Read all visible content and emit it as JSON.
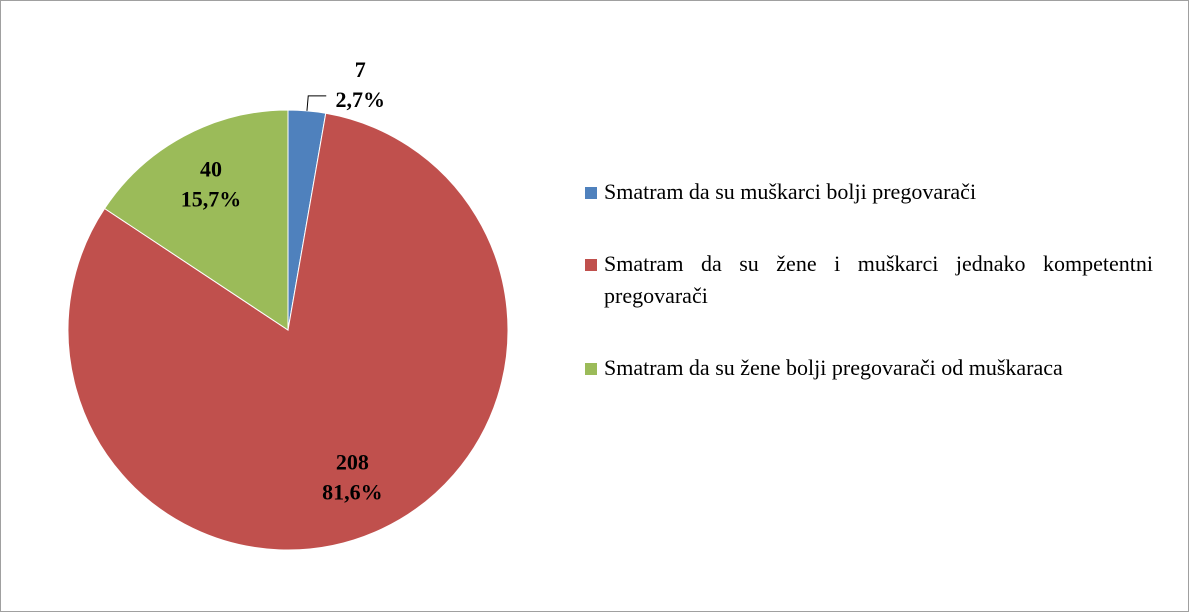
{
  "chart_data": {
    "type": "pie",
    "categories": [
      "Smatram da su muškarci bolji pregovarači",
      "Smatram da su žene i muškarci jednako kompetentni pregovarači",
      "Smatram da su žene bolji pregovarači od muškaraca"
    ],
    "values": [
      7,
      208,
      40
    ],
    "percent_labels": [
      "2,7%",
      "81,6%",
      "15,7%"
    ],
    "colors": [
      "#4f81bd",
      "#c0504d",
      "#9bbb59"
    ],
    "legend": "right"
  }
}
